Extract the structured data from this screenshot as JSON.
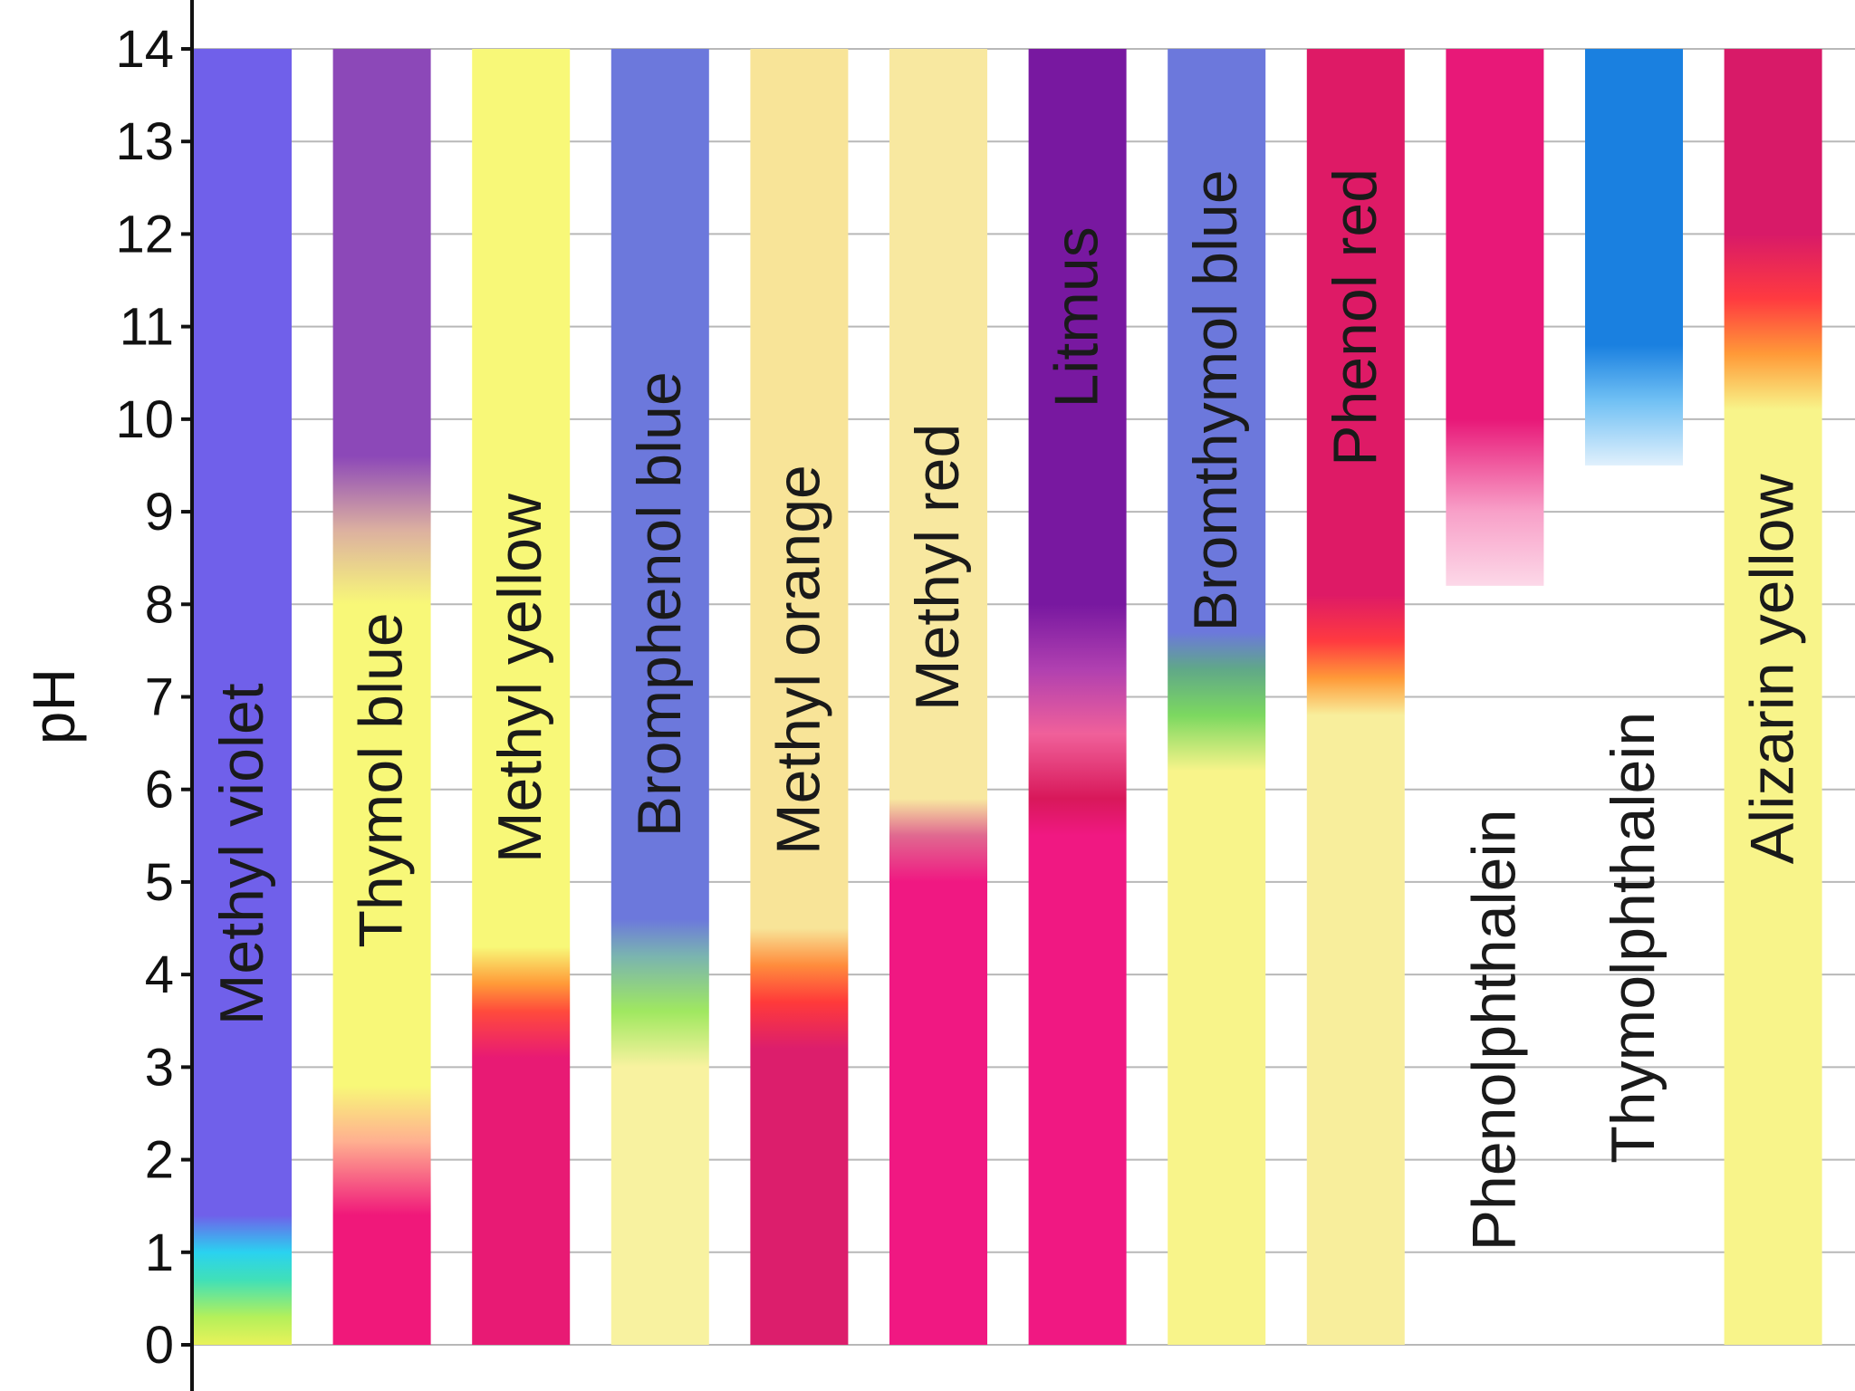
{
  "chart_data": {
    "type": "bar",
    "title": "",
    "xlabel": "",
    "ylabel": "pH",
    "ylim": [
      0,
      14
    ],
    "yticks": [
      0,
      1,
      2,
      3,
      4,
      5,
      6,
      7,
      8,
      9,
      10,
      11,
      12,
      13,
      14
    ],
    "grid": true,
    "series": [
      {
        "name": "Methyl violet",
        "range": [
          0,
          14
        ],
        "stops": [
          {
            "ph": 0,
            "color": "#e8f25a"
          },
          {
            "ph": 0.3,
            "color": "#b4f05a"
          },
          {
            "ph": 0.7,
            "color": "#40e0b8"
          },
          {
            "ph": 1.0,
            "color": "#2ad2f0"
          },
          {
            "ph": 1.4,
            "color": "#7060ea"
          },
          {
            "ph": 14,
            "color": "#7060ea"
          }
        ]
      },
      {
        "name": "Thymol blue",
        "range": [
          0,
          14
        ],
        "stops": [
          {
            "ph": 0,
            "color": "#f0187a"
          },
          {
            "ph": 1.4,
            "color": "#f0187a"
          },
          {
            "ph": 2.2,
            "color": "#ffb090"
          },
          {
            "ph": 2.8,
            "color": "#f8f878"
          },
          {
            "ph": 8.0,
            "color": "#f8f878"
          },
          {
            "ph": 8.8,
            "color": "#dcb0a0"
          },
          {
            "ph": 9.6,
            "color": "#8c48b8"
          },
          {
            "ph": 14,
            "color": "#8c48b8"
          }
        ]
      },
      {
        "name": "Methyl yellow",
        "range": [
          0,
          14
        ],
        "stops": [
          {
            "ph": 0,
            "color": "#e81a74"
          },
          {
            "ph": 3.1,
            "color": "#e81a74"
          },
          {
            "ph": 3.6,
            "color": "#ff4a3c"
          },
          {
            "ph": 3.9,
            "color": "#ff9a38"
          },
          {
            "ph": 4.3,
            "color": "#f8f878"
          },
          {
            "ph": 14,
            "color": "#f8f878"
          }
        ]
      },
      {
        "name": "Bromphenol blue",
        "range": [
          0,
          14
        ],
        "stops": [
          {
            "ph": 0,
            "color": "#f8f2a0"
          },
          {
            "ph": 3.0,
            "color": "#f8f2a0"
          },
          {
            "ph": 3.6,
            "color": "#a0e860"
          },
          {
            "ph": 4.2,
            "color": "#7ab4b0"
          },
          {
            "ph": 4.6,
            "color": "#6c78dc"
          },
          {
            "ph": 14,
            "color": "#6c78dc"
          }
        ]
      },
      {
        "name": "Methyl orange",
        "range": [
          0,
          14
        ],
        "stops": [
          {
            "ph": 0,
            "color": "#dc1e6c"
          },
          {
            "ph": 3.2,
            "color": "#dc1e6c"
          },
          {
            "ph": 3.7,
            "color": "#ff3a3a"
          },
          {
            "ph": 4.1,
            "color": "#ff8c3c"
          },
          {
            "ph": 4.5,
            "color": "#f8e498"
          },
          {
            "ph": 14,
            "color": "#f8e498"
          }
        ]
      },
      {
        "name": "Methyl red",
        "range": [
          0,
          14
        ],
        "stops": [
          {
            "ph": 0,
            "color": "#f01882"
          },
          {
            "ph": 5.0,
            "color": "#f01882"
          },
          {
            "ph": 5.5,
            "color": "#e06890"
          },
          {
            "ph": 5.9,
            "color": "#f8e8a0"
          },
          {
            "ph": 14,
            "color": "#f8e8a0"
          }
        ]
      },
      {
        "name": "Litmus",
        "range": [
          0,
          14
        ],
        "stops": [
          {
            "ph": 0,
            "color": "#f01882"
          },
          {
            "ph": 5.5,
            "color": "#f01882"
          },
          {
            "ph": 5.9,
            "color": "#d8185a"
          },
          {
            "ph": 6.6,
            "color": "#f0609a"
          },
          {
            "ph": 7.3,
            "color": "#b040b0"
          },
          {
            "ph": 8.0,
            "color": "#7818a0"
          },
          {
            "ph": 14,
            "color": "#7818a0"
          }
        ]
      },
      {
        "name": "Bromthymol blue",
        "range": [
          0,
          14
        ],
        "stops": [
          {
            "ph": 0,
            "color": "#f8f48a"
          },
          {
            "ph": 6.2,
            "color": "#f8f48a"
          },
          {
            "ph": 6.8,
            "color": "#7cd860"
          },
          {
            "ph": 7.3,
            "color": "#60a888"
          },
          {
            "ph": 7.7,
            "color": "#6c78dc"
          },
          {
            "ph": 14,
            "color": "#6c78dc"
          }
        ]
      },
      {
        "name": "Phenol red",
        "range": [
          0,
          14
        ],
        "stops": [
          {
            "ph": 0,
            "color": "#f8ee9c"
          },
          {
            "ph": 6.8,
            "color": "#f8ee9c"
          },
          {
            "ph": 7.2,
            "color": "#ff9a38"
          },
          {
            "ph": 7.6,
            "color": "#ff3a40"
          },
          {
            "ph": 8.1,
            "color": "#de1a66"
          },
          {
            "ph": 14,
            "color": "#de1a66"
          }
        ]
      },
      {
        "name": "Phenolphthalein",
        "range": [
          8.2,
          14
        ],
        "stops": [
          {
            "ph": 8.2,
            "color": "#fcd8e8"
          },
          {
            "ph": 9.0,
            "color": "#f8a0c8"
          },
          {
            "ph": 10.0,
            "color": "#e81878"
          },
          {
            "ph": 14,
            "color": "#e81878"
          }
        ]
      },
      {
        "name": "Thymolphthalein",
        "range": [
          9.5,
          14
        ],
        "stops": [
          {
            "ph": 9.5,
            "color": "#e0f0fc"
          },
          {
            "ph": 10.2,
            "color": "#70c0f4"
          },
          {
            "ph": 10.8,
            "color": "#1a80e0"
          },
          {
            "ph": 14,
            "color": "#1a80e0"
          }
        ]
      },
      {
        "name": "Alizarin yellow",
        "range": [
          0,
          14
        ],
        "stops": [
          {
            "ph": 0,
            "color": "#f8f48a"
          },
          {
            "ph": 10.1,
            "color": "#f8f48a"
          },
          {
            "ph": 10.7,
            "color": "#ff9a38"
          },
          {
            "ph": 11.3,
            "color": "#ff3a40"
          },
          {
            "ph": 12.0,
            "color": "#d81a68"
          },
          {
            "ph": 14,
            "color": "#d81a68"
          }
        ]
      }
    ]
  }
}
